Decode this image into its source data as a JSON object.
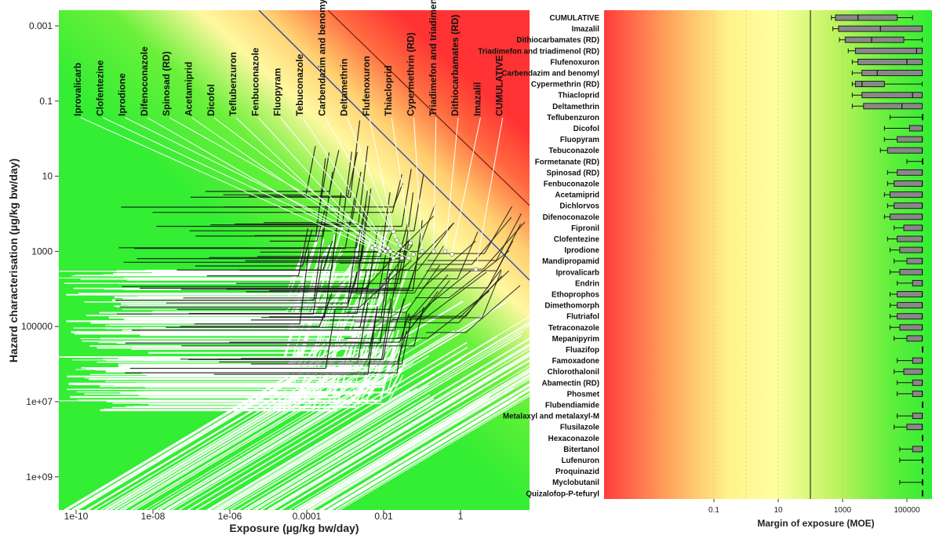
{
  "chart_data": [
    {
      "type": "scatter",
      "title": "",
      "xlabel": "Exposure (µg/kg bw/day)",
      "ylabel": "Hazard characterisation (µg/kg bw/day)",
      "x_scale": "log",
      "y_scale": "log",
      "y_inverted": true,
      "xlim": [
        3e-11,
        60
      ],
      "ylim": [
        0.0005,
        6000000000.0
      ],
      "x_ticks": [
        {
          "value": 1e-10,
          "label": "1e-10"
        },
        {
          "value": 1e-08,
          "label": "1e-08"
        },
        {
          "value": 1e-06,
          "label": "1e-06"
        },
        {
          "value": 0.0001,
          "label": "0.0001"
        },
        {
          "value": 0.01,
          "label": "0.01"
        },
        {
          "value": 1,
          "label": "1"
        }
      ],
      "y_ticks": [
        {
          "value": 0.001,
          "label": "0.001"
        },
        {
          "value": 0.1,
          "label": "0.1"
        },
        {
          "value": 10,
          "label": "10"
        },
        {
          "value": 1000,
          "label": "1000"
        },
        {
          "value": 100000,
          "label": "100000"
        },
        {
          "value": 10000000,
          "label": "1e+07"
        },
        {
          "value": 1000000000,
          "label": "1e+09"
        }
      ],
      "background": "risk gradient: green (low risk, bottom-left) to red (high risk, top-right)",
      "reference_lines": [
        {
          "color": "#1f3fb0"
        },
        {
          "color": "#6a1010"
        }
      ],
      "series": [
        {
          "color": "#ffffff",
          "values": [
            {
              "label": "Iprovalicarb",
              "exposure": 0.018,
              "hazard": 1500
            },
            {
              "label": "Clofentezine",
              "exposure": 0.03,
              "hazard": 1500
            },
            {
              "label": "Iprodione",
              "exposure": 0.045,
              "hazard": 1500
            },
            {
              "label": "Difenoconazole",
              "exposure": 0.008,
              "hazard": 1000
            },
            {
              "label": "Spinosad (RD)",
              "exposure": 0.06,
              "hazard": 1200
            },
            {
              "label": "Acetamiprid",
              "exposure": 0.011,
              "hazard": 1000
            },
            {
              "label": "Dicofol",
              "exposure": 0.014,
              "hazard": 900
            },
            {
              "label": "Teflubenzuron",
              "exposure": 0.005,
              "hazard": 800
            },
            {
              "label": "Fenbuconazole",
              "exposure": 0.006,
              "hazard": 700
            },
            {
              "label": "Fluopyram",
              "exposure": 0.013,
              "hazard": 800
            },
            {
              "label": "Tebuconazole",
              "exposure": 0.015,
              "hazard": 1000
            },
            {
              "label": "Carbendazim and benomyl",
              "exposure": 0.027,
              "hazard": 700
            },
            {
              "label": "Deltamethrin",
              "exposure": 0.022,
              "hazard": 500
            },
            {
              "label": "Flufenoxuron",
              "exposure": 0.018,
              "hazard": 300
            },
            {
              "label": "Thiacloprid",
              "exposure": 0.05,
              "hazard": 600
            },
            {
              "label": "Cypermethrin (RD)",
              "exposure": 0.1,
              "hazard": 1000
            },
            {
              "label": "Triadimefon and triadimenol (RD)",
              "exposure": 0.2,
              "hazard": 1000
            },
            {
              "label": "Dithiocarbamates (RD)",
              "exposure": 0.4,
              "hazard": 1000
            },
            {
              "label": "Imazalil",
              "exposure": 0.6,
              "hazard": 1200
            },
            {
              "label": "CUMULATIVE",
              "exposure": 2.5,
              "hazard": 3000
            }
          ]
        }
      ]
    },
    {
      "type": "box",
      "title": "",
      "xlabel": "Margin of exposure (MOE)",
      "x_scale": "log",
      "xlim": [
        0.01,
        300000
      ],
      "x_ticks": [
        {
          "value": 0.1,
          "label": "0.1"
        },
        {
          "value": 10,
          "label": "10"
        },
        {
          "value": 1000,
          "label": "1000"
        },
        {
          "value": 100000,
          "label": "100000"
        }
      ],
      "reference_line": 100,
      "background": "risk gradient: red (low MOE, high risk) to green (high MOE, low risk)",
      "categories": [
        "CUMULATIVE",
        "Imazalil",
        "Dithiocarbamates (RD)",
        "Triadimefon and triadimenol (RD)",
        "Flufenoxuron",
        "Carbendazim and benomyl",
        "Cypermethrin (RD)",
        "Thiacloprid",
        "Deltamethrin",
        "Teflubenzuron",
        "Dicofol",
        "Fluopyram",
        "Tebuconazole",
        "Formetanate (RD)",
        "Spinosad (RD)",
        "Fenbuconazole",
        "Acetamiprid",
        "Dichlorvos",
        "Difenoconazole",
        "Fipronil",
        "Clofentezine",
        "Iprodione",
        "Mandipropamid",
        "Iprovalicarb",
        "Endrin",
        "Ethoprophos",
        "Dimethomorph",
        "Flutriafol",
        "Tetraconazole",
        "Mepanipyrim",
        "Fluazifop",
        "Famoxadone",
        "Chlorothalonil",
        "Abamectin (RD)",
        "Phosmet",
        "Flubendiamide",
        "Metalaxyl and metalaxyl-M",
        "Flusilazole",
        "Hexaconazole",
        "Bitertanol",
        "Lufenuron",
        "Proquinazid",
        "Myclobutanil",
        "Quizalofop-P-tefuryl"
      ],
      "box_stats": [
        {
          "whisker_low": 450,
          "q1": 600,
          "median": 3000,
          "q3": 50000,
          "whisker_high": 150000
        },
        {
          "whisker_low": 500,
          "q1": 750,
          "median": 15000,
          "q3": 300000,
          "whisker_high": 300000
        },
        {
          "whisker_low": 800,
          "q1": 1200,
          "median": 8000,
          "q3": 80000,
          "whisker_high": 300000
        },
        {
          "whisker_low": 1500,
          "q1": 2500,
          "median": 200000,
          "q3": 300000,
          "whisker_high": 300000
        },
        {
          "whisker_low": 2000,
          "q1": 3000,
          "median": 100000,
          "q3": 300000,
          "whisker_high": 300000
        },
        {
          "whisker_low": 2000,
          "q1": 4000,
          "median": 12000,
          "q3": 300000,
          "whisker_high": 300000
        },
        {
          "whisker_low": 2000,
          "q1": 2500,
          "median": 4000,
          "q3": 20000,
          "whisker_high": 300000
        },
        {
          "whisker_low": 2000,
          "q1": 4000,
          "median": 150000,
          "q3": 300000,
          "whisker_high": 300000
        },
        {
          "whisker_low": 2000,
          "q1": 4500,
          "median": 70000,
          "q3": 300000,
          "whisker_high": 300000
        },
        {
          "whisker_low": 30000,
          "q1": 300000,
          "median": 300000,
          "q3": 300000,
          "whisker_high": 300000
        },
        {
          "whisker_low": 20000,
          "q1": 120000,
          "median": 300000,
          "q3": 300000,
          "whisker_high": 300000
        },
        {
          "whisker_low": 20000,
          "q1": 50000,
          "median": 300000,
          "q3": 300000,
          "whisker_high": 300000
        },
        {
          "whisker_low": 15000,
          "q1": 25000,
          "median": 300000,
          "q3": 300000,
          "whisker_high": 300000
        },
        {
          "whisker_low": 100000,
          "q1": 300000,
          "median": 300000,
          "q3": 300000,
          "whisker_high": 300000
        },
        {
          "whisker_low": 25000,
          "q1": 50000,
          "median": 300000,
          "q3": 300000,
          "whisker_high": 300000
        },
        {
          "whisker_low": 25000,
          "q1": 40000,
          "median": 300000,
          "q3": 300000,
          "whisker_high": 300000
        },
        {
          "whisker_low": 20000,
          "q1": 30000,
          "median": 300000,
          "q3": 300000,
          "whisker_high": 300000
        },
        {
          "whisker_low": 25000,
          "q1": 40000,
          "median": 300000,
          "q3": 300000,
          "whisker_high": 300000
        },
        {
          "whisker_low": 20000,
          "q1": 30000,
          "median": 300000,
          "q3": 300000,
          "whisker_high": 300000
        },
        {
          "whisker_low": 40000,
          "q1": 80000,
          "median": 300000,
          "q3": 300000,
          "whisker_high": 300000
        },
        {
          "whisker_low": 25000,
          "q1": 50000,
          "median": 300000,
          "q3": 300000,
          "whisker_high": 300000
        },
        {
          "whisker_low": 30000,
          "q1": 60000,
          "median": 300000,
          "q3": 300000,
          "whisker_high": 300000
        },
        {
          "whisker_low": 40000,
          "q1": 100000,
          "median": 300000,
          "q3": 300000,
          "whisker_high": 300000
        },
        {
          "whisker_low": 30000,
          "q1": 60000,
          "median": 300000,
          "q3": 300000,
          "whisker_high": 300000
        },
        {
          "whisker_low": 50000,
          "q1": 150000,
          "median": 300000,
          "q3": 300000,
          "whisker_high": 300000
        },
        {
          "whisker_low": 30000,
          "q1": 50000,
          "median": 300000,
          "q3": 300000,
          "whisker_high": 300000
        },
        {
          "whisker_low": 30000,
          "q1": 50000,
          "median": 300000,
          "q3": 300000,
          "whisker_high": 300000
        },
        {
          "whisker_low": 30000,
          "q1": 50000,
          "median": 300000,
          "q3": 300000,
          "whisker_high": 300000
        },
        {
          "whisker_low": 30000,
          "q1": 60000,
          "median": 300000,
          "q3": 300000,
          "whisker_high": 300000
        },
        {
          "whisker_low": 40000,
          "q1": 100000,
          "median": 300000,
          "q3": 300000,
          "whisker_high": 300000
        },
        {
          "whisker_low": 300000,
          "q1": 300000,
          "median": 300000,
          "q3": 300000,
          "whisker_high": 300000
        },
        {
          "whisker_low": 50000,
          "q1": 150000,
          "median": 300000,
          "q3": 300000,
          "whisker_high": 300000
        },
        {
          "whisker_low": 40000,
          "q1": 80000,
          "median": 300000,
          "q3": 300000,
          "whisker_high": 300000
        },
        {
          "whisker_low": 50000,
          "q1": 150000,
          "median": 300000,
          "q3": 300000,
          "whisker_high": 300000
        },
        {
          "whisker_low": 50000,
          "q1": 150000,
          "median": 300000,
          "q3": 300000,
          "whisker_high": 300000
        },
        {
          "whisker_low": 300000,
          "q1": 300000,
          "median": 300000,
          "q3": 300000,
          "whisker_high": 300000
        },
        {
          "whisker_low": 50000,
          "q1": 150000,
          "median": 300000,
          "q3": 300000,
          "whisker_high": 300000
        },
        {
          "whisker_low": 40000,
          "q1": 100000,
          "median": 300000,
          "q3": 300000,
          "whisker_high": 300000
        },
        {
          "whisker_low": 300000,
          "q1": 300000,
          "median": 300000,
          "q3": 300000,
          "whisker_high": 300000
        },
        {
          "whisker_low": 60000,
          "q1": 150000,
          "median": 300000,
          "q3": 300000,
          "whisker_high": 300000
        },
        {
          "whisker_low": 60000,
          "q1": 300000,
          "median": 300000,
          "q3": 300000,
          "whisker_high": 300000
        },
        {
          "whisker_low": 300000,
          "q1": 300000,
          "median": 300000,
          "q3": 300000,
          "whisker_high": 300000
        },
        {
          "whisker_low": 60000,
          "q1": 300000,
          "median": 300000,
          "q3": 300000,
          "whisker_high": 300000
        },
        {
          "whisker_low": 300000,
          "q1": 300000,
          "median": 300000,
          "q3": 300000,
          "whisker_high": 300000
        }
      ],
      "box_color": "#888888"
    }
  ]
}
